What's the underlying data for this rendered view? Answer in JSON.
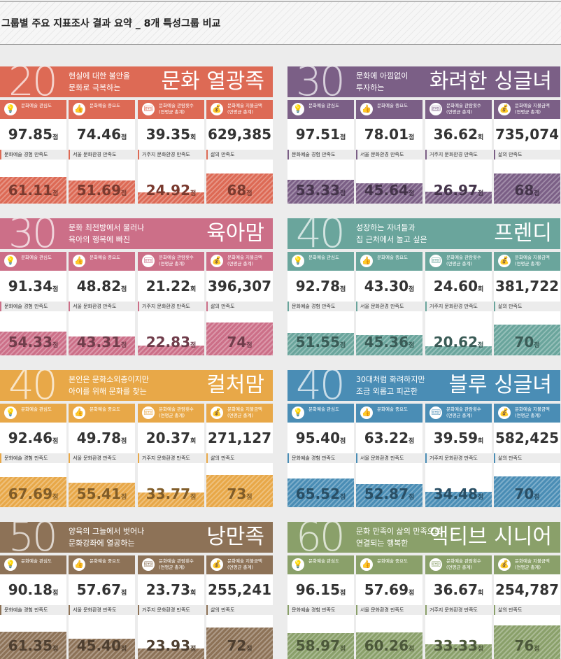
{
  "page_title": "그룹별 주요 지표조사 결과 요약 _ 8개 특성그룹 비교",
  "common": {
    "metric_labels": [
      "문화예술 관심도",
      "문화예술 중요도",
      "문화예술 관람횟수\n(연평균 총계)",
      "문화예술 지불금액\n(연평균 총계)"
    ],
    "metric_icons": [
      "lightbulb-icon",
      "thumbs-up-icon",
      "ticket-icon",
      "money-bag-icon"
    ],
    "metric_glyphs": [
      "💡",
      "👍",
      "🎟",
      "💰"
    ],
    "metric_units": [
      "점",
      "점",
      "회",
      "원"
    ],
    "satisfaction_labels": [
      "문화예술 경험 만족도",
      "서울 문화환경 만족도",
      "거주지 문화환경 만족도",
      "삶의 만족도"
    ],
    "satisfaction_unit": "점"
  },
  "groups": [
    {
      "age": "20",
      "desc": [
        "현실에 대한 불안을",
        "문화로 극복하는"
      ],
      "name": "문화 열광족",
      "color": "#dd6a55",
      "metrics": [
        "97.85",
        "74.46",
        "39.35",
        "629,385"
      ],
      "satisfaction": [
        61.11,
        51.69,
        24.92,
        68
      ]
    },
    {
      "age": "30",
      "desc": [
        "문화에 아낌없이",
        "투자하는"
      ],
      "name": "화려한 싱글녀",
      "color": "#7b5f86",
      "metrics": [
        "97.51",
        "78.01",
        "36.62",
        "735,074"
      ],
      "satisfaction": [
        53.33,
        45.64,
        26.97,
        68
      ]
    },
    {
      "age": "30",
      "desc": [
        "문화 최전방에서 물러나",
        "육아의 행복에 빠진"
      ],
      "name": "육아맘",
      "color": "#cc6f88",
      "metrics": [
        "91.34",
        "48.82",
        "21.22",
        "396,307"
      ],
      "satisfaction": [
        54.33,
        43.31,
        22.83,
        74
      ]
    },
    {
      "age": "40",
      "desc": [
        "성장하는 자녀들과",
        "집 근처에서 놀고 싶은"
      ],
      "name": "프렌디",
      "color": "#6aa59c",
      "metrics": [
        "92.78",
        "43.30",
        "24.60",
        "381,722"
      ],
      "satisfaction": [
        51.55,
        45.36,
        20.62,
        70
      ]
    },
    {
      "age": "40",
      "desc": [
        "본인은 문화소외층이지만",
        "아이를 위해 문화를 찾는"
      ],
      "name": "컬처맘",
      "color": "#e8a848",
      "metrics": [
        "92.46",
        "49.78",
        "20.37",
        "271,127"
      ],
      "satisfaction": [
        67.69,
        55.41,
        33.77,
        73
      ]
    },
    {
      "age": "40",
      "desc": [
        "30대처럼 화려하지만",
        "조금 외롭고 피곤한"
      ],
      "name": "블루 싱글녀",
      "color": "#4a8db5",
      "metrics": [
        "95.40",
        "63.22",
        "39.59",
        "582,425"
      ],
      "satisfaction": [
        65.52,
        52.87,
        34.48,
        70
      ]
    },
    {
      "age": "50",
      "desc": [
        "양육의 그늘에서 벗어나",
        "문화강좌에 열공하는"
      ],
      "name": "낭만족",
      "color": "#8d7257",
      "metrics": [
        "90.18",
        "57.67",
        "23.73",
        "255,241"
      ],
      "satisfaction": [
        61.35,
        45.4,
        23.93,
        72
      ]
    },
    {
      "age": "60",
      "desc": [
        "문화 만족이 삶의 만족으로",
        "연결되는 행복한"
      ],
      "name": "액티브 시니어",
      "color": "#8aa06a",
      "metrics": [
        "96.15",
        "57.69",
        "36.67",
        "254,787"
      ],
      "satisfaction": [
        58.97,
        60.26,
        33.33,
        76
      ]
    }
  ]
}
